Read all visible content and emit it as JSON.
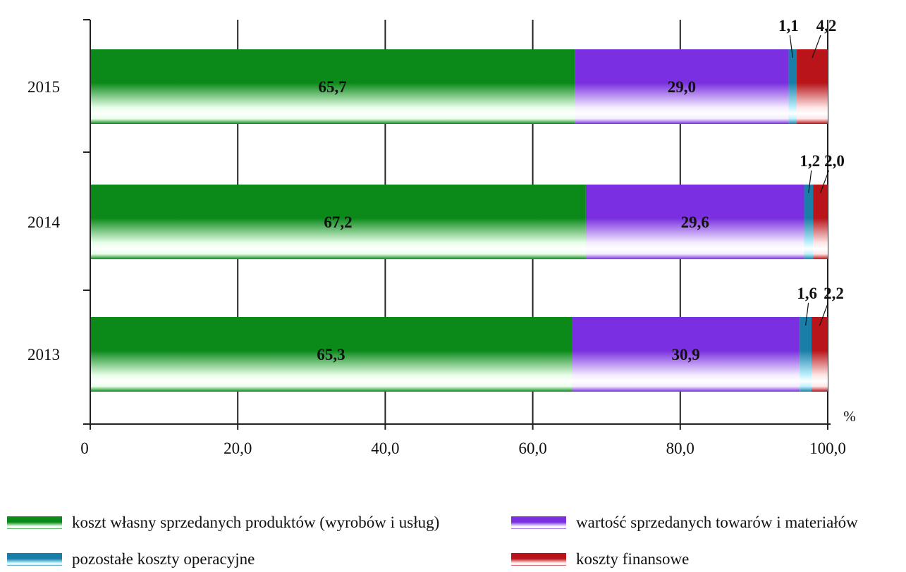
{
  "chart_data": {
    "type": "bar",
    "orientation": "horizontal",
    "stacked": true,
    "categories": [
      "2015",
      "2014",
      "2013"
    ],
    "series": [
      {
        "name": "koszt własny sprzedanych produktów (wyrobów i usług)",
        "values": [
          65.7,
          67.2,
          65.3
        ],
        "labels": [
          "65,7",
          "67,2",
          "65,3"
        ],
        "color": "#0b8a1a",
        "light": "#e8ffe8"
      },
      {
        "name": "wartość sprzedanych towarów i materiałów",
        "values": [
          29.0,
          29.6,
          30.9
        ],
        "labels": [
          "29,0",
          "29,6",
          "30,9"
        ],
        "color": "#7a2fe0",
        "light": "#f4ecff"
      },
      {
        "name": "pozostałe koszty operacyjne",
        "values": [
          1.1,
          1.2,
          1.6
        ],
        "labels": [
          "1,1",
          "1,2",
          "1,6"
        ],
        "color": "#1a7fa8",
        "light": "#bff2ff"
      },
      {
        "name": "koszty finansowe",
        "values": [
          4.2,
          2.0,
          2.2
        ],
        "labels": [
          "4,2",
          "2,0",
          "2,2"
        ],
        "color": "#b8141a",
        "light": "#ffe6e6"
      }
    ],
    "xlim": [
      0,
      100
    ],
    "xticks": [
      "0",
      "20,0",
      "40,0",
      "60,0",
      "80,0",
      "100,0"
    ],
    "xunit": "%",
    "grid": true,
    "legend_position": "bottom"
  }
}
